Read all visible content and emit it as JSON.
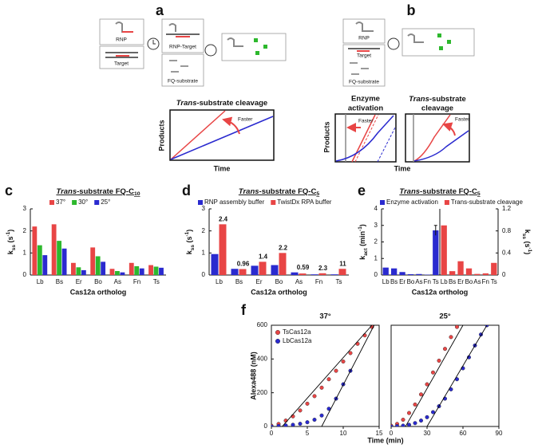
{
  "diagrams": {
    "a": {
      "label": "a",
      "rnp": "RNP",
      "target": "Target",
      "complex": "RNP-Target",
      "substrate": "FQ-substrate",
      "plot_title": [
        {
          "text": "Trans",
          "italic": true
        },
        {
          "text": "-substrate cleavage"
        }
      ],
      "ylabel": "Products",
      "xlabel": "Time",
      "faster": "Faster"
    },
    "b": {
      "label": "b",
      "rnp": "RNP",
      "target": "Target",
      "substrate": "FQ-substrate",
      "plot1_title": [
        "Enzyme",
        "activation"
      ],
      "plot2_title": [
        [
          {
            "text": "Trans",
            "italic": true
          },
          {
            "text": "-substrate"
          }
        ],
        "cleavage"
      ],
      "ylabel": "Products",
      "xlabel": "Time",
      "faster1": "Faster",
      "faster2": "Faster"
    }
  },
  "chart_data": [
    {
      "type": "bar",
      "label": "c",
      "title": [
        {
          "text": "Trans",
          "italic": true
        },
        {
          "text": "-substrate FQ-C"
        },
        {
          "text": "10",
          "sub": true
        }
      ],
      "ylabel": [
        {
          "text": "k"
        },
        {
          "text": "ss",
          "sub": true
        },
        {
          "text": " (s"
        },
        {
          "text": "-1",
          "sup": true
        },
        {
          "text": ")"
        }
      ],
      "xlabel": "Cas12a ortholog",
      "categories": [
        "Lb",
        "Bs",
        "Er",
        "Bo",
        "As",
        "Fn",
        "Ts"
      ],
      "series": [
        {
          "name": "37°",
          "color": "#e84545",
          "values": [
            2.2,
            2.3,
            0.55,
            1.25,
            0.28,
            0.55,
            0.45
          ]
        },
        {
          "name": "30°",
          "color": "#2db82d",
          "values": [
            1.35,
            1.55,
            0.35,
            0.85,
            0.18,
            0.4,
            0.38
          ]
        },
        {
          "name": "25°",
          "color": "#2a2acf",
          "values": [
            0.9,
            1.2,
            0.22,
            0.6,
            0.12,
            0.3,
            0.33
          ]
        }
      ],
      "ylim": [
        0,
        3
      ],
      "yticks": [
        0,
        1,
        2,
        3
      ]
    },
    {
      "type": "bar",
      "label": "d",
      "title": [
        {
          "text": "Trans",
          "italic": true
        },
        {
          "text": "-substrate FQ-C"
        },
        {
          "text": "5",
          "sub": true
        }
      ],
      "ylabel": [
        {
          "text": "k"
        },
        {
          "text": "ss",
          "sub": true
        },
        {
          "text": " (s"
        },
        {
          "text": "-1",
          "sup": true
        },
        {
          "text": ")"
        }
      ],
      "xlabel": "Cas12a ortholog",
      "categories": [
        "Lb",
        "Bs",
        "Er",
        "Bo",
        "As",
        "Fn",
        "Ts"
      ],
      "series": [
        {
          "name": "RNP assembly buffer",
          "color": "#2a2acf",
          "values": [
            0.95,
            0.28,
            0.42,
            0.45,
            0.12,
            0.03,
            0.03
          ]
        },
        {
          "name": "TwistDx RPA buffer",
          "color": "#e84545",
          "values": [
            2.3,
            0.27,
            0.6,
            1.0,
            0.07,
            0.08,
            0.28
          ]
        }
      ],
      "annotations": [
        2.4,
        0.96,
        1.4,
        2.2,
        0.59,
        2.3,
        11
      ],
      "ylim": [
        0,
        3
      ],
      "yticks": [
        0,
        1,
        2,
        3
      ]
    },
    {
      "type": "dual_bar",
      "label": "e",
      "title": [
        {
          "text": "Trans",
          "italic": true
        },
        {
          "text": "-substrate FQ-C"
        },
        {
          "text": "5",
          "sub": true
        }
      ],
      "ylabel": [
        {
          "text": "k"
        },
        {
          "text": "act",
          "sub": true
        },
        {
          "text": " (min"
        },
        {
          "text": "-1",
          "sup": true
        },
        {
          "text": ")"
        }
      ],
      "y2label": [
        {
          "text": "k"
        },
        {
          "text": "ss",
          "sub": true
        },
        {
          "text": " (s"
        },
        {
          "text": "-1",
          "sup": true
        },
        {
          "text": ")"
        }
      ],
      "xlabel": "Cas12a ortholog",
      "categories": [
        "Lb",
        "Bs",
        "Er",
        "Bo",
        "As",
        "Fn",
        "Ts"
      ],
      "series": [
        {
          "name": "Enzyme activation",
          "color": "#2a2acf",
          "values": [
            0.45,
            0.4,
            0.18,
            0.05,
            0.06,
            0.02,
            2.7
          ],
          "errors": [
            null,
            null,
            null,
            null,
            null,
            null,
            0.3
          ]
        },
        {
          "name": "Trans-substrate cleavage",
          "color": "#e84545",
          "axis": "y2",
          "values": [
            0.9,
            0.07,
            0.25,
            0.12,
            0.02,
            0.03,
            0.22
          ],
          "errors": [
            null,
            null,
            null,
            null,
            null,
            null,
            null
          ]
        }
      ],
      "ylim": [
        0,
        4
      ],
      "yticks": [
        0,
        1,
        2,
        3,
        4
      ],
      "y2lim": [
        0,
        1.2
      ],
      "y2ticks": [
        0,
        0.4,
        0.8,
        1.2
      ]
    },
    {
      "type": "scatter",
      "label": "f",
      "title": "37°",
      "xlabel": "Time (min)",
      "ylabel": "Alexa488 (nM)",
      "legend": true,
      "xlim": [
        0,
        15
      ],
      "xticks": [
        0,
        5,
        10,
        15
      ],
      "ylim": [
        0,
        600
      ],
      "yticks": [
        0,
        200,
        400,
        600
      ],
      "series": [
        {
          "name": "TsCas12a",
          "color": "#e84545",
          "x": [
            0,
            1,
            2,
            3,
            4,
            5,
            6,
            7,
            8,
            9,
            10,
            11,
            12,
            13,
            14
          ],
          "values": [
            5,
            15,
            35,
            60,
            95,
            135,
            180,
            230,
            280,
            330,
            385,
            435,
            490,
            540,
            590
          ]
        },
        {
          "name": "LbCas12a",
          "color": "#2a2acf",
          "x": [
            0,
            1,
            2,
            3,
            4,
            5,
            6,
            7,
            8,
            9,
            10,
            11
          ],
          "values": [
            0,
            3,
            6,
            10,
            16,
            25,
            40,
            65,
            105,
            165,
            250,
            330
          ]
        }
      ],
      "fits": [
        {
          "color": "#000000",
          "x": [
            1.5,
            14
          ],
          "values": [
            0,
            600
          ]
        },
        {
          "color": "#000000",
          "x": [
            7,
            14.3
          ],
          "values": [
            0,
            600
          ]
        }
      ]
    },
    {
      "type": "scatter",
      "title": "25°",
      "xlim": [
        0,
        90
      ],
      "xticks": [
        0,
        30,
        60,
        90
      ],
      "ylim": [
        0,
        600
      ],
      "series": [
        {
          "color": "#e84545",
          "x": [
            0,
            5,
            10,
            15,
            20,
            25,
            30,
            35,
            40,
            45,
            50,
            55
          ],
          "values": [
            5,
            15,
            40,
            80,
            130,
            190,
            250,
            320,
            390,
            460,
            530,
            590
          ]
        },
        {
          "color": "#2a2acf",
          "x": [
            0,
            5,
            10,
            15,
            20,
            25,
            30,
            35,
            40,
            45,
            50,
            55,
            60,
            65,
            70,
            75,
            80
          ],
          "values": [
            0,
            2,
            5,
            10,
            20,
            35,
            55,
            85,
            120,
            165,
            220,
            280,
            345,
            410,
            480,
            545,
            600
          ]
        }
      ],
      "fits": [
        {
          "color": "#000000",
          "x": [
            12,
            60
          ],
          "values": [
            0,
            600
          ]
        },
        {
          "color": "#000000",
          "x": [
            30,
            80
          ],
          "values": [
            0,
            600
          ]
        }
      ]
    }
  ]
}
